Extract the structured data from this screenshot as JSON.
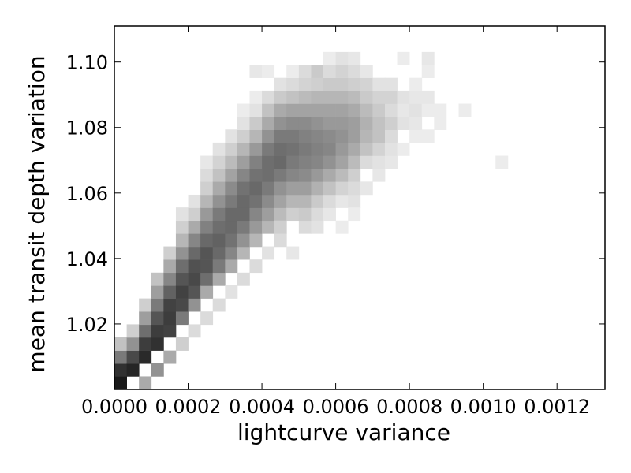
{
  "chart_data": {
    "type": "heatmap",
    "title": "",
    "xlabel": "lightcurve variance",
    "ylabel": "mean transit depth variation",
    "xlim": [
      0.0,
      0.00133
    ],
    "ylim": [
      1.0,
      1.111
    ],
    "grid": false,
    "colormap": "grayscale (white = low density, black = high density)",
    "bin_width_x": 3.33e-05,
    "bin_height_y": 0.00397,
    "xticks": [
      0.0,
      0.0002,
      0.0004,
      0.0006,
      0.0008,
      0.001,
      0.0012
    ],
    "xtick_labels": [
      "0.0000",
      "0.0002",
      "0.0004",
      "0.0006",
      "0.0008",
      "0.0010",
      "0.0012"
    ],
    "yticks": [
      1.02,
      1.04,
      1.06,
      1.08,
      1.1
    ],
    "ytick_labels": [
      "1.02",
      "1.04",
      "1.06",
      "1.08",
      "1.10"
    ],
    "cells_note": "each cell: [x_center, y_center, density 0-1]",
    "cells": [
      [
        1.67e-05,
        1.002,
        0.95
      ],
      [
        1.67e-05,
        1.006,
        0.85
      ],
      [
        1.67e-05,
        1.0099,
        0.55
      ],
      [
        1.67e-05,
        1.0139,
        0.25
      ],
      [
        5e-05,
        1.006,
        0.9
      ],
      [
        5e-05,
        1.0099,
        0.75
      ],
      [
        5e-05,
        1.0139,
        0.45
      ],
      [
        5e-05,
        1.0179,
        0.2
      ],
      [
        8.33e-05,
        1.0099,
        0.88
      ],
      [
        8.33e-05,
        1.0139,
        0.8
      ],
      [
        8.33e-05,
        1.0179,
        0.6
      ],
      [
        8.33e-05,
        1.0218,
        0.4
      ],
      [
        8.33e-05,
        1.0258,
        0.2
      ],
      [
        8.33e-05,
        1.002,
        0.35
      ],
      [
        0.0001167,
        1.0139,
        0.85
      ],
      [
        0.0001167,
        1.0179,
        0.8
      ],
      [
        0.0001167,
        1.0218,
        0.7
      ],
      [
        0.0001167,
        1.0258,
        0.55
      ],
      [
        0.0001167,
        1.0298,
        0.4
      ],
      [
        0.0001167,
        1.0337,
        0.25
      ],
      [
        0.0001167,
        1.006,
        0.45
      ],
      [
        0.00015,
        1.0179,
        0.78
      ],
      [
        0.00015,
        1.0218,
        0.8
      ],
      [
        0.00015,
        1.0258,
        0.78
      ],
      [
        0.00015,
        1.0298,
        0.65
      ],
      [
        0.00015,
        1.0337,
        0.5
      ],
      [
        0.00015,
        1.0377,
        0.35
      ],
      [
        0.00015,
        1.0417,
        0.2
      ],
      [
        0.00015,
        1.0099,
        0.35
      ],
      [
        0.0001833,
        1.0218,
        0.55
      ],
      [
        0.0001833,
        1.0258,
        0.75
      ],
      [
        0.0001833,
        1.0298,
        0.78
      ],
      [
        0.0001833,
        1.0337,
        0.7
      ],
      [
        0.0001833,
        1.0377,
        0.6
      ],
      [
        0.0001833,
        1.0417,
        0.45
      ],
      [
        0.0001833,
        1.0456,
        0.3
      ],
      [
        0.0001833,
        1.0496,
        0.2
      ],
      [
        0.0001833,
        1.0536,
        0.12
      ],
      [
        0.0001833,
        1.0139,
        0.2
      ],
      [
        0.0002167,
        1.0258,
        0.45
      ],
      [
        0.0002167,
        1.0298,
        0.7
      ],
      [
        0.0002167,
        1.0337,
        0.75
      ],
      [
        0.0002167,
        1.0377,
        0.72
      ],
      [
        0.0002167,
        1.0417,
        0.62
      ],
      [
        0.0002167,
        1.0456,
        0.5
      ],
      [
        0.0002167,
        1.0496,
        0.35
      ],
      [
        0.0002167,
        1.0536,
        0.2
      ],
      [
        0.0002167,
        1.0575,
        0.12
      ],
      [
        0.0002167,
        1.0179,
        0.15
      ],
      [
        0.00025,
        1.0298,
        0.35
      ],
      [
        0.00025,
        1.0337,
        0.6
      ],
      [
        0.00025,
        1.0377,
        0.7
      ],
      [
        0.00025,
        1.0417,
        0.7
      ],
      [
        0.00025,
        1.0456,
        0.62
      ],
      [
        0.00025,
        1.0496,
        0.52
      ],
      [
        0.00025,
        1.0536,
        0.42
      ],
      [
        0.00025,
        1.0575,
        0.3
      ],
      [
        0.00025,
        1.0615,
        0.2
      ],
      [
        0.00025,
        1.0655,
        0.15
      ],
      [
        0.00025,
        1.0694,
        0.1
      ],
      [
        0.00025,
        1.0218,
        0.15
      ],
      [
        0.0002833,
        1.0337,
        0.35
      ],
      [
        0.0002833,
        1.0377,
        0.55
      ],
      [
        0.0002833,
        1.0417,
        0.62
      ],
      [
        0.0002833,
        1.0456,
        0.65
      ],
      [
        0.0002833,
        1.0496,
        0.6
      ],
      [
        0.0002833,
        1.0536,
        0.55
      ],
      [
        0.0002833,
        1.0575,
        0.45
      ],
      [
        0.0002833,
        1.0615,
        0.35
      ],
      [
        0.0002833,
        1.0655,
        0.25
      ],
      [
        0.0002833,
        1.0694,
        0.18
      ],
      [
        0.0002833,
        1.0734,
        0.12
      ],
      [
        0.0002833,
        1.0258,
        0.15
      ],
      [
        0.0003167,
        1.0377,
        0.35
      ],
      [
        0.0003167,
        1.0417,
        0.5
      ],
      [
        0.0003167,
        1.0456,
        0.58
      ],
      [
        0.0003167,
        1.0496,
        0.62
      ],
      [
        0.0003167,
        1.0536,
        0.62
      ],
      [
        0.0003167,
        1.0575,
        0.55
      ],
      [
        0.0003167,
        1.0615,
        0.48
      ],
      [
        0.0003167,
        1.0655,
        0.38
      ],
      [
        0.0003167,
        1.0694,
        0.28
      ],
      [
        0.0003167,
        1.0734,
        0.2
      ],
      [
        0.0003167,
        1.0774,
        0.12
      ],
      [
        0.0003167,
        1.0298,
        0.12
      ],
      [
        0.00035,
        1.0417,
        0.3
      ],
      [
        0.00035,
        1.0456,
        0.45
      ],
      [
        0.00035,
        1.0496,
        0.55
      ],
      [
        0.00035,
        1.0536,
        0.62
      ],
      [
        0.00035,
        1.0575,
        0.62
      ],
      [
        0.00035,
        1.0615,
        0.58
      ],
      [
        0.00035,
        1.0655,
        0.5
      ],
      [
        0.00035,
        1.0694,
        0.4
      ],
      [
        0.00035,
        1.0734,
        0.3
      ],
      [
        0.00035,
        1.0774,
        0.2
      ],
      [
        0.00035,
        1.0813,
        0.12
      ],
      [
        0.00035,
        1.0853,
        0.08
      ],
      [
        0.00035,
        1.0337,
        0.15
      ],
      [
        0.0003833,
        1.0456,
        0.3
      ],
      [
        0.0003833,
        1.0496,
        0.42
      ],
      [
        0.0003833,
        1.0536,
        0.5
      ],
      [
        0.0003833,
        1.0575,
        0.58
      ],
      [
        0.0003833,
        1.0615,
        0.62
      ],
      [
        0.0003833,
        1.0655,
        0.58
      ],
      [
        0.0003833,
        1.0694,
        0.52
      ],
      [
        0.0003833,
        1.0734,
        0.42
      ],
      [
        0.0003833,
        1.0774,
        0.3
      ],
      [
        0.0003833,
        1.0813,
        0.22
      ],
      [
        0.0003833,
        1.0853,
        0.12
      ],
      [
        0.0003833,
        1.0893,
        0.08
      ],
      [
        0.0003833,
        1.0377,
        0.15
      ],
      [
        0.0003833,
        1.0972,
        0.1
      ],
      [
        0.0004167,
        1.0496,
        0.3
      ],
      [
        0.0004167,
        1.0536,
        0.4
      ],
      [
        0.0004167,
        1.0575,
        0.48
      ],
      [
        0.0004167,
        1.0615,
        0.55
      ],
      [
        0.0004167,
        1.0655,
        0.6
      ],
      [
        0.0004167,
        1.0694,
        0.6
      ],
      [
        0.0004167,
        1.0734,
        0.55
      ],
      [
        0.0004167,
        1.0774,
        0.45
      ],
      [
        0.0004167,
        1.0813,
        0.35
      ],
      [
        0.0004167,
        1.0853,
        0.25
      ],
      [
        0.0004167,
        1.0893,
        0.15
      ],
      [
        0.0004167,
        1.0417,
        0.12
      ],
      [
        0.0004167,
        1.0972,
        0.08
      ],
      [
        0.00045,
        1.0536,
        0.28
      ],
      [
        0.00045,
        1.0575,
        0.38
      ],
      [
        0.00045,
        1.0615,
        0.45
      ],
      [
        0.00045,
        1.0655,
        0.55
      ],
      [
        0.00045,
        1.0694,
        0.62
      ],
      [
        0.00045,
        1.0734,
        0.6
      ],
      [
        0.00045,
        1.0774,
        0.55
      ],
      [
        0.00045,
        1.0813,
        0.45
      ],
      [
        0.00045,
        1.0853,
        0.35
      ],
      [
        0.00045,
        1.0893,
        0.22
      ],
      [
        0.00045,
        1.0932,
        0.12
      ],
      [
        0.00045,
        1.0456,
        0.15
      ],
      [
        0.00045,
        1.0496,
        0.2
      ],
      [
        0.0004833,
        1.0536,
        0.2
      ],
      [
        0.0004833,
        1.0575,
        0.3
      ],
      [
        0.0004833,
        1.0615,
        0.4
      ],
      [
        0.0004833,
        1.0655,
        0.5
      ],
      [
        0.0004833,
        1.0694,
        0.55
      ],
      [
        0.0004833,
        1.0734,
        0.58
      ],
      [
        0.0004833,
        1.0774,
        0.55
      ],
      [
        0.0004833,
        1.0813,
        0.48
      ],
      [
        0.0004833,
        1.0853,
        0.38
      ],
      [
        0.0004833,
        1.0893,
        0.25
      ],
      [
        0.0004833,
        1.0932,
        0.15
      ],
      [
        0.0004833,
        1.0972,
        0.08
      ],
      [
        0.0004833,
        1.0417,
        0.1
      ],
      [
        0.0005167,
        1.0496,
        0.15
      ],
      [
        0.0005167,
        1.0536,
        0.22
      ],
      [
        0.0005167,
        1.0575,
        0.3
      ],
      [
        0.0005167,
        1.0615,
        0.4
      ],
      [
        0.0005167,
        1.0655,
        0.48
      ],
      [
        0.0005167,
        1.0694,
        0.52
      ],
      [
        0.0005167,
        1.0734,
        0.55
      ],
      [
        0.0005167,
        1.0774,
        0.52
      ],
      [
        0.0005167,
        1.0813,
        0.48
      ],
      [
        0.0005167,
        1.0853,
        0.38
      ],
      [
        0.0005167,
        1.0893,
        0.28
      ],
      [
        0.0005167,
        1.0932,
        0.18
      ],
      [
        0.0005167,
        1.0972,
        0.15
      ],
      [
        0.00055,
        1.0536,
        0.15
      ],
      [
        0.00055,
        1.0575,
        0.22
      ],
      [
        0.00055,
        1.0615,
        0.32
      ],
      [
        0.00055,
        1.0655,
        0.42
      ],
      [
        0.00055,
        1.0694,
        0.5
      ],
      [
        0.00055,
        1.0734,
        0.52
      ],
      [
        0.00055,
        1.0774,
        0.5
      ],
      [
        0.00055,
        1.0813,
        0.45
      ],
      [
        0.00055,
        1.0853,
        0.38
      ],
      [
        0.00055,
        1.0893,
        0.3
      ],
      [
        0.00055,
        1.0932,
        0.2
      ],
      [
        0.00055,
        1.0972,
        0.22
      ],
      [
        0.00055,
        1.0496,
        0.12
      ],
      [
        0.0005833,
        1.0536,
        0.1
      ],
      [
        0.0005833,
        1.0575,
        0.15
      ],
      [
        0.0005833,
        1.0615,
        0.25
      ],
      [
        0.0005833,
        1.0655,
        0.35
      ],
      [
        0.0005833,
        1.0694,
        0.45
      ],
      [
        0.0005833,
        1.0734,
        0.5
      ],
      [
        0.0005833,
        1.0774,
        0.48
      ],
      [
        0.0005833,
        1.0813,
        0.42
      ],
      [
        0.0005833,
        1.0853,
        0.38
      ],
      [
        0.0005833,
        1.0893,
        0.3
      ],
      [
        0.0005833,
        1.0932,
        0.22
      ],
      [
        0.0005833,
        1.0972,
        0.15
      ],
      [
        0.0005833,
        1.1011,
        0.08
      ],
      [
        0.0006167,
        1.0575,
        0.1
      ],
      [
        0.0006167,
        1.0615,
        0.18
      ],
      [
        0.0006167,
        1.0655,
        0.28
      ],
      [
        0.0006167,
        1.0694,
        0.38
      ],
      [
        0.0006167,
        1.0734,
        0.42
      ],
      [
        0.0006167,
        1.0774,
        0.45
      ],
      [
        0.0006167,
        1.0813,
        0.42
      ],
      [
        0.0006167,
        1.0853,
        0.38
      ],
      [
        0.0006167,
        1.0893,
        0.3
      ],
      [
        0.0006167,
        1.0932,
        0.22
      ],
      [
        0.0006167,
        1.0972,
        0.18
      ],
      [
        0.0006167,
        1.1011,
        0.12
      ],
      [
        0.0006167,
        1.0496,
        0.08
      ],
      [
        0.00065,
        1.0575,
        0.12
      ],
      [
        0.00065,
        1.0615,
        0.15
      ],
      [
        0.00065,
        1.0655,
        0.2
      ],
      [
        0.00065,
        1.0694,
        0.28
      ],
      [
        0.00065,
        1.0734,
        0.35
      ],
      [
        0.00065,
        1.0774,
        0.4
      ],
      [
        0.00065,
        1.0813,
        0.4
      ],
      [
        0.00065,
        1.0853,
        0.35
      ],
      [
        0.00065,
        1.0893,
        0.28
      ],
      [
        0.00065,
        1.0932,
        0.2
      ],
      [
        0.00065,
        1.0972,
        0.15
      ],
      [
        0.00065,
        1.1011,
        0.1
      ],
      [
        0.00065,
        1.0536,
        0.08
      ],
      [
        0.0006833,
        1.0615,
        0.1
      ],
      [
        0.0006833,
        1.0694,
        0.15
      ],
      [
        0.0006833,
        1.0734,
        0.25
      ],
      [
        0.0006833,
        1.0774,
        0.3
      ],
      [
        0.0006833,
        1.0813,
        0.32
      ],
      [
        0.0006833,
        1.0853,
        0.28
      ],
      [
        0.0006833,
        1.0893,
        0.22
      ],
      [
        0.0006833,
        1.0932,
        0.18
      ],
      [
        0.0006833,
        1.0972,
        0.1
      ],
      [
        0.0007167,
        1.0655,
        0.1
      ],
      [
        0.0007167,
        1.0694,
        0.12
      ],
      [
        0.0007167,
        1.0734,
        0.18
      ],
      [
        0.0007167,
        1.0774,
        0.25
      ],
      [
        0.0007167,
        1.0813,
        0.25
      ],
      [
        0.0007167,
        1.0853,
        0.22
      ],
      [
        0.0007167,
        1.0893,
        0.18
      ],
      [
        0.0007167,
        1.0932,
        0.12
      ],
      [
        0.00075,
        1.0694,
        0.1
      ],
      [
        0.00075,
        1.0734,
        0.12
      ],
      [
        0.00075,
        1.0774,
        0.15
      ],
      [
        0.00075,
        1.0813,
        0.2
      ],
      [
        0.00075,
        1.0853,
        0.15
      ],
      [
        0.00075,
        1.0893,
        0.18
      ],
      [
        0.00075,
        1.0932,
        0.12
      ],
      [
        0.0007833,
        1.0734,
        0.08
      ],
      [
        0.0007833,
        1.0813,
        0.12
      ],
      [
        0.0007833,
        1.0853,
        0.1
      ],
      [
        0.0007833,
        1.0893,
        0.12
      ],
      [
        0.0007833,
        1.1011,
        0.08
      ],
      [
        0.0008167,
        1.0774,
        0.08
      ],
      [
        0.0008167,
        1.0813,
        0.1
      ],
      [
        0.0008167,
        1.0853,
        0.12
      ],
      [
        0.0008167,
        1.0893,
        0.1
      ],
      [
        0.0008167,
        1.0932,
        0.08
      ],
      [
        0.00085,
        1.0774,
        0.08
      ],
      [
        0.00085,
        1.0853,
        0.08
      ],
      [
        0.00085,
        1.0893,
        0.1
      ],
      [
        0.00085,
        1.0972,
        0.08
      ],
      [
        0.00085,
        1.1011,
        0.1
      ],
      [
        0.0008833,
        1.0813,
        0.08
      ],
      [
        0.0008833,
        1.0853,
        0.08
      ],
      [
        0.00095,
        1.0853,
        0.08
      ],
      [
        0.00105,
        1.0694,
        0.08
      ]
    ]
  }
}
